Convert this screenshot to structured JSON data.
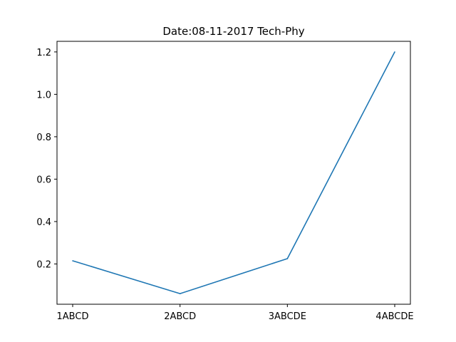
{
  "chart_data": {
    "type": "line",
    "title": "Date:08-11-2017 Tech-Phy",
    "xlabel": "",
    "ylabel": "",
    "categories": [
      "1ABCD",
      "2ABCD",
      "3ABCDE",
      "4ABCDE"
    ],
    "series": [
      {
        "values": [
          0.215,
          0.06,
          0.225,
          1.2
        ],
        "color": "#1f77b4"
      }
    ],
    "ylim": [
      0.01,
      1.25
    ],
    "yticks": [
      0.2,
      0.4,
      0.6,
      0.8,
      1.0,
      1.2
    ],
    "ytick_labels": [
      "0.2",
      "0.4",
      "0.6",
      "0.8",
      "1.0",
      "1.2"
    ],
    "grid": false,
    "legend": "none"
  }
}
